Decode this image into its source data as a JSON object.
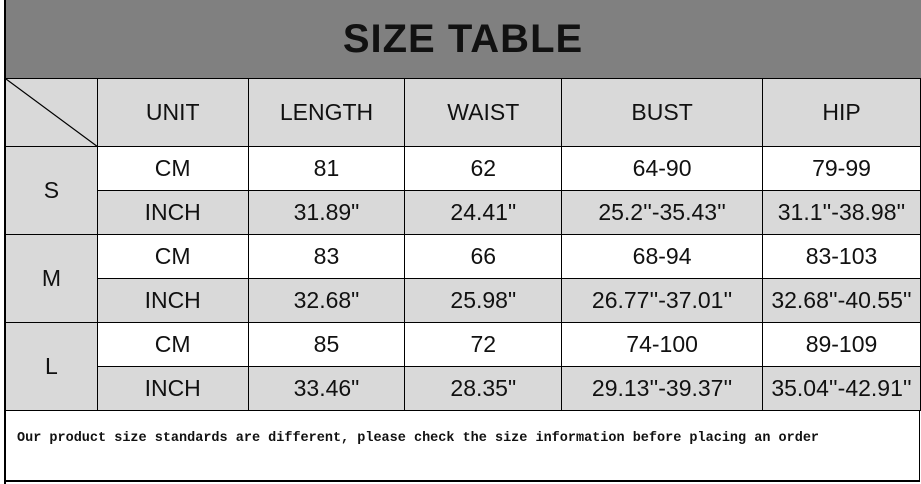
{
  "title": "SIZE TABLE",
  "headers": [
    "UNIT",
    "LENGTH",
    "WAIST",
    "BUST",
    "HIP"
  ],
  "sizes": [
    {
      "size": "S",
      "rows": [
        {
          "unit": "CM",
          "length": "81",
          "waist": "62",
          "bust": "64-90",
          "hip": "79-99"
        },
        {
          "unit": "INCH",
          "length": "31.89\"",
          "waist": "24.41\"",
          "bust": "25.2''-35.43''",
          "hip": "31.1''-38.98''"
        }
      ]
    },
    {
      "size": "M",
      "rows": [
        {
          "unit": "CM",
          "length": "83",
          "waist": "66",
          "bust": "68-94",
          "hip": "83-103"
        },
        {
          "unit": "INCH",
          "length": "32.68\"",
          "waist": "25.98\"",
          "bust": "26.77''-37.01''",
          "hip": "32.68''-40.55''"
        }
      ]
    },
    {
      "size": "L",
      "rows": [
        {
          "unit": "CM",
          "length": "85",
          "waist": "72",
          "bust": "74-100",
          "hip": "89-109"
        },
        {
          "unit": "INCH",
          "length": "33.46\"",
          "waist": "28.35\"",
          "bust": "29.13''-39.37''",
          "hip": "35.04''-42.91''"
        }
      ]
    }
  ],
  "footer_note": "Our product size standards are different, please check the size information before placing an order",
  "colors": {
    "title_bg": "#808080",
    "cell_gray": "#d9d9d9"
  }
}
